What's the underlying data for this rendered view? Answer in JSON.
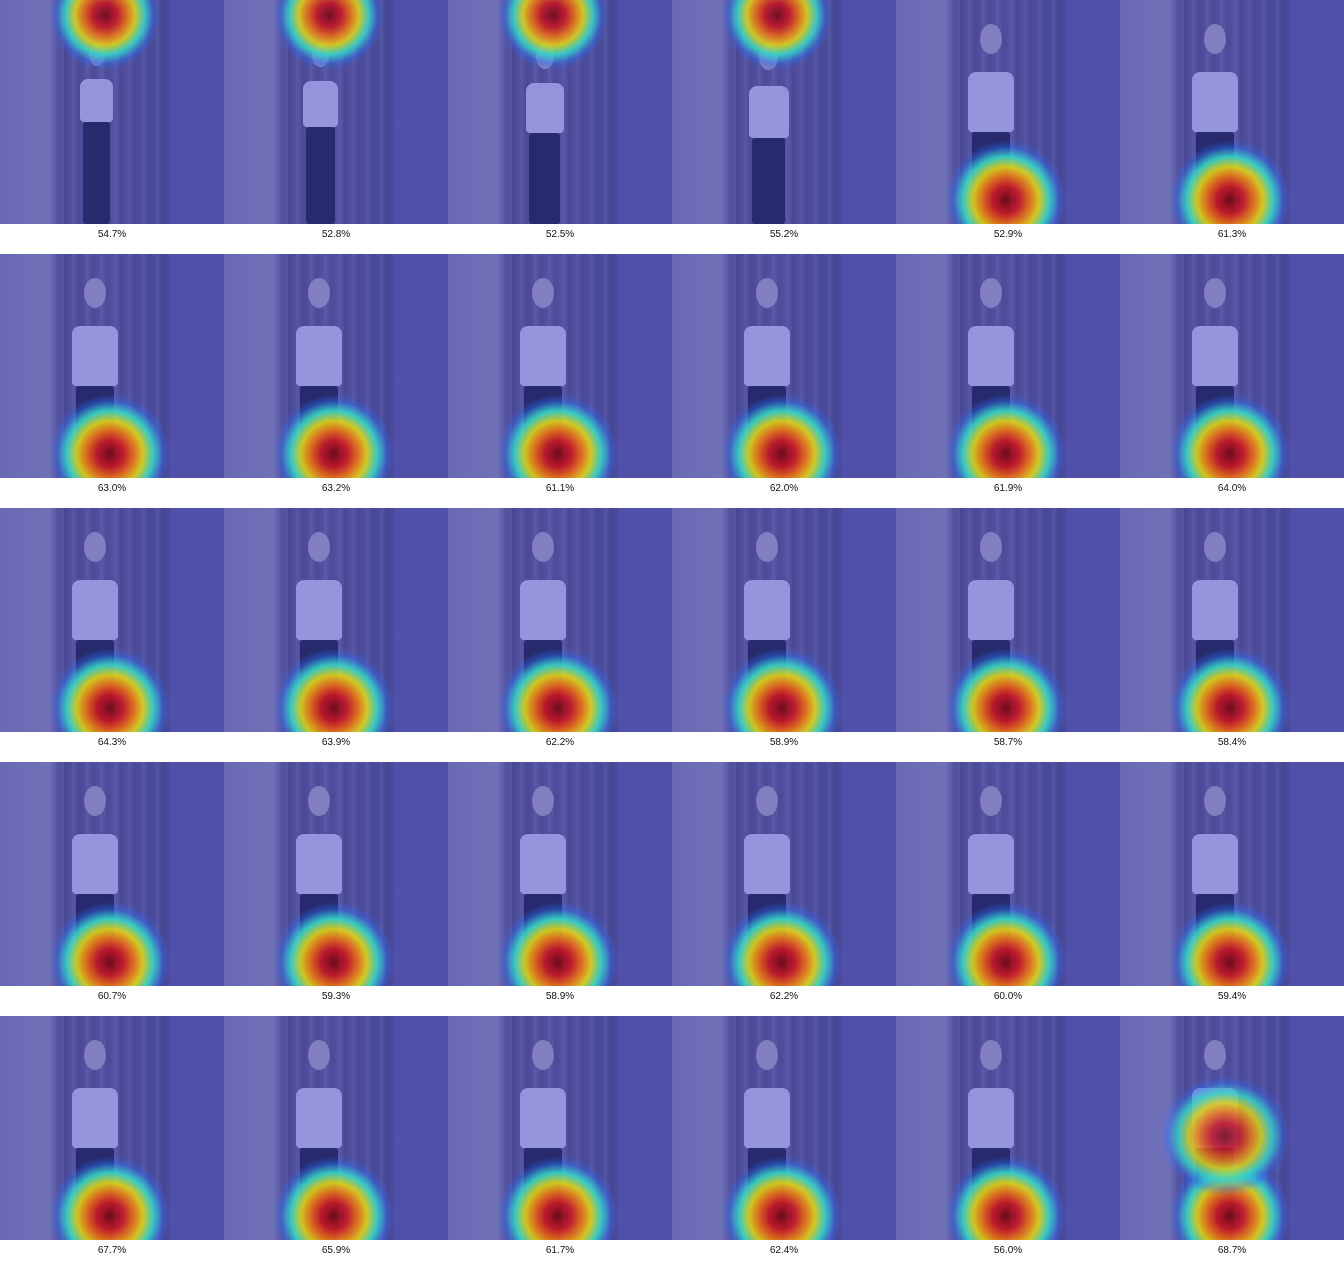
{
  "grid": {
    "columns": 6
  },
  "frames": [
    {
      "score": "54.7%",
      "focus": "top"
    },
    {
      "score": "52.8%",
      "focus": "top"
    },
    {
      "score": "52.5%",
      "focus": "top"
    },
    {
      "score": "55.2%",
      "focus": "top"
    },
    {
      "score": "52.9%",
      "focus": "legs"
    },
    {
      "score": "61.3%",
      "focus": "legs"
    },
    {
      "score": "63.0%",
      "focus": "legs"
    },
    {
      "score": "63.2%",
      "focus": "legs"
    },
    {
      "score": "61.1%",
      "focus": "legs"
    },
    {
      "score": "62.0%",
      "focus": "legs"
    },
    {
      "score": "61.9%",
      "focus": "legs"
    },
    {
      "score": "64.0%",
      "focus": "legs"
    },
    {
      "score": "64.3%",
      "focus": "legs"
    },
    {
      "score": "63.9%",
      "focus": "legs"
    },
    {
      "score": "62.2%",
      "focus": "legs"
    },
    {
      "score": "58.9%",
      "focus": "legs"
    },
    {
      "score": "58.7%",
      "focus": "legs"
    },
    {
      "score": "58.4%",
      "focus": "legs"
    },
    {
      "score": "60.7%",
      "focus": "legs"
    },
    {
      "score": "59.3%",
      "focus": "legs"
    },
    {
      "score": "58.9%",
      "focus": "legs"
    },
    {
      "score": "62.2%",
      "focus": "legs"
    },
    {
      "score": "60.0%",
      "focus": "legs"
    },
    {
      "score": "59.4%",
      "focus": "legs"
    },
    {
      "score": "67.7%",
      "focus": "legs"
    },
    {
      "score": "65.9%",
      "focus": "legs"
    },
    {
      "score": "61.7%",
      "focus": "legs"
    },
    {
      "score": "62.4%",
      "focus": "legs"
    },
    {
      "score": "56.0%",
      "focus": "legs"
    },
    {
      "score": "68.7%",
      "focus": "torso-legs"
    }
  ]
}
